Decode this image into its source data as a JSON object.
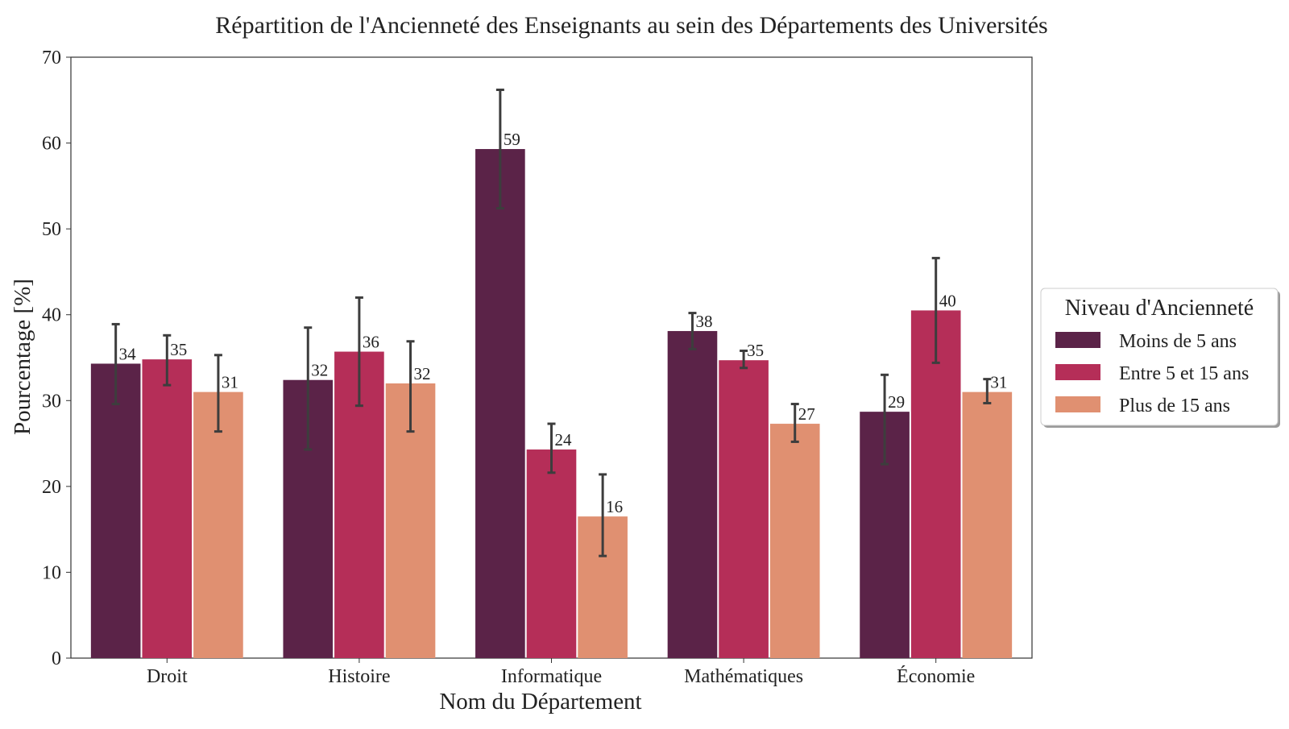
{
  "chart_data": {
    "type": "bar",
    "title": "Répartition de l'Ancienneté des Enseignants au sein des Départements des Universités",
    "xlabel": "Nom du Département",
    "ylabel": "Pourcentage [%]",
    "ylim": [
      0,
      70
    ],
    "yticks": [
      0,
      10,
      20,
      30,
      40,
      50,
      60,
      70
    ],
    "grid": false,
    "legend_title": "Niveau d'Ancienneté",
    "legend_position": "right",
    "categories": [
      "Droit",
      "Histoire",
      "Informatique",
      "Mathématiques",
      "Économie"
    ],
    "series": [
      {
        "name": "Moins de 5 ans",
        "color": "#5b2348",
        "values": [
          34.3,
          32.4,
          59.3,
          38.1,
          28.7
        ],
        "labels": [
          "34",
          "32",
          "59",
          "38",
          "29"
        ],
        "error_low": [
          29.6,
          24.3,
          52.4,
          36.0,
          22.6
        ],
        "error_high": [
          38.9,
          38.5,
          66.2,
          40.2,
          33.0
        ]
      },
      {
        "name": "Entre 5 et 15 ans",
        "color": "#b52e58",
        "values": [
          34.8,
          35.7,
          24.3,
          34.7,
          40.5
        ],
        "labels": [
          "35",
          "36",
          "24",
          "35",
          "40"
        ],
        "error_low": [
          31.8,
          29.4,
          21.6,
          33.8,
          34.4
        ],
        "error_high": [
          37.6,
          42.0,
          27.3,
          35.8,
          46.6
        ]
      },
      {
        "name": "Plus de 15 ans",
        "color": "#e09071",
        "values": [
          31.0,
          32.0,
          16.5,
          27.3,
          31.0
        ],
        "labels": [
          "31",
          "32",
          "16",
          "27",
          "31"
        ],
        "error_low": [
          26.4,
          26.4,
          11.9,
          25.2,
          29.7
        ],
        "error_high": [
          35.3,
          36.9,
          21.4,
          29.6,
          32.5
        ]
      }
    ]
  }
}
